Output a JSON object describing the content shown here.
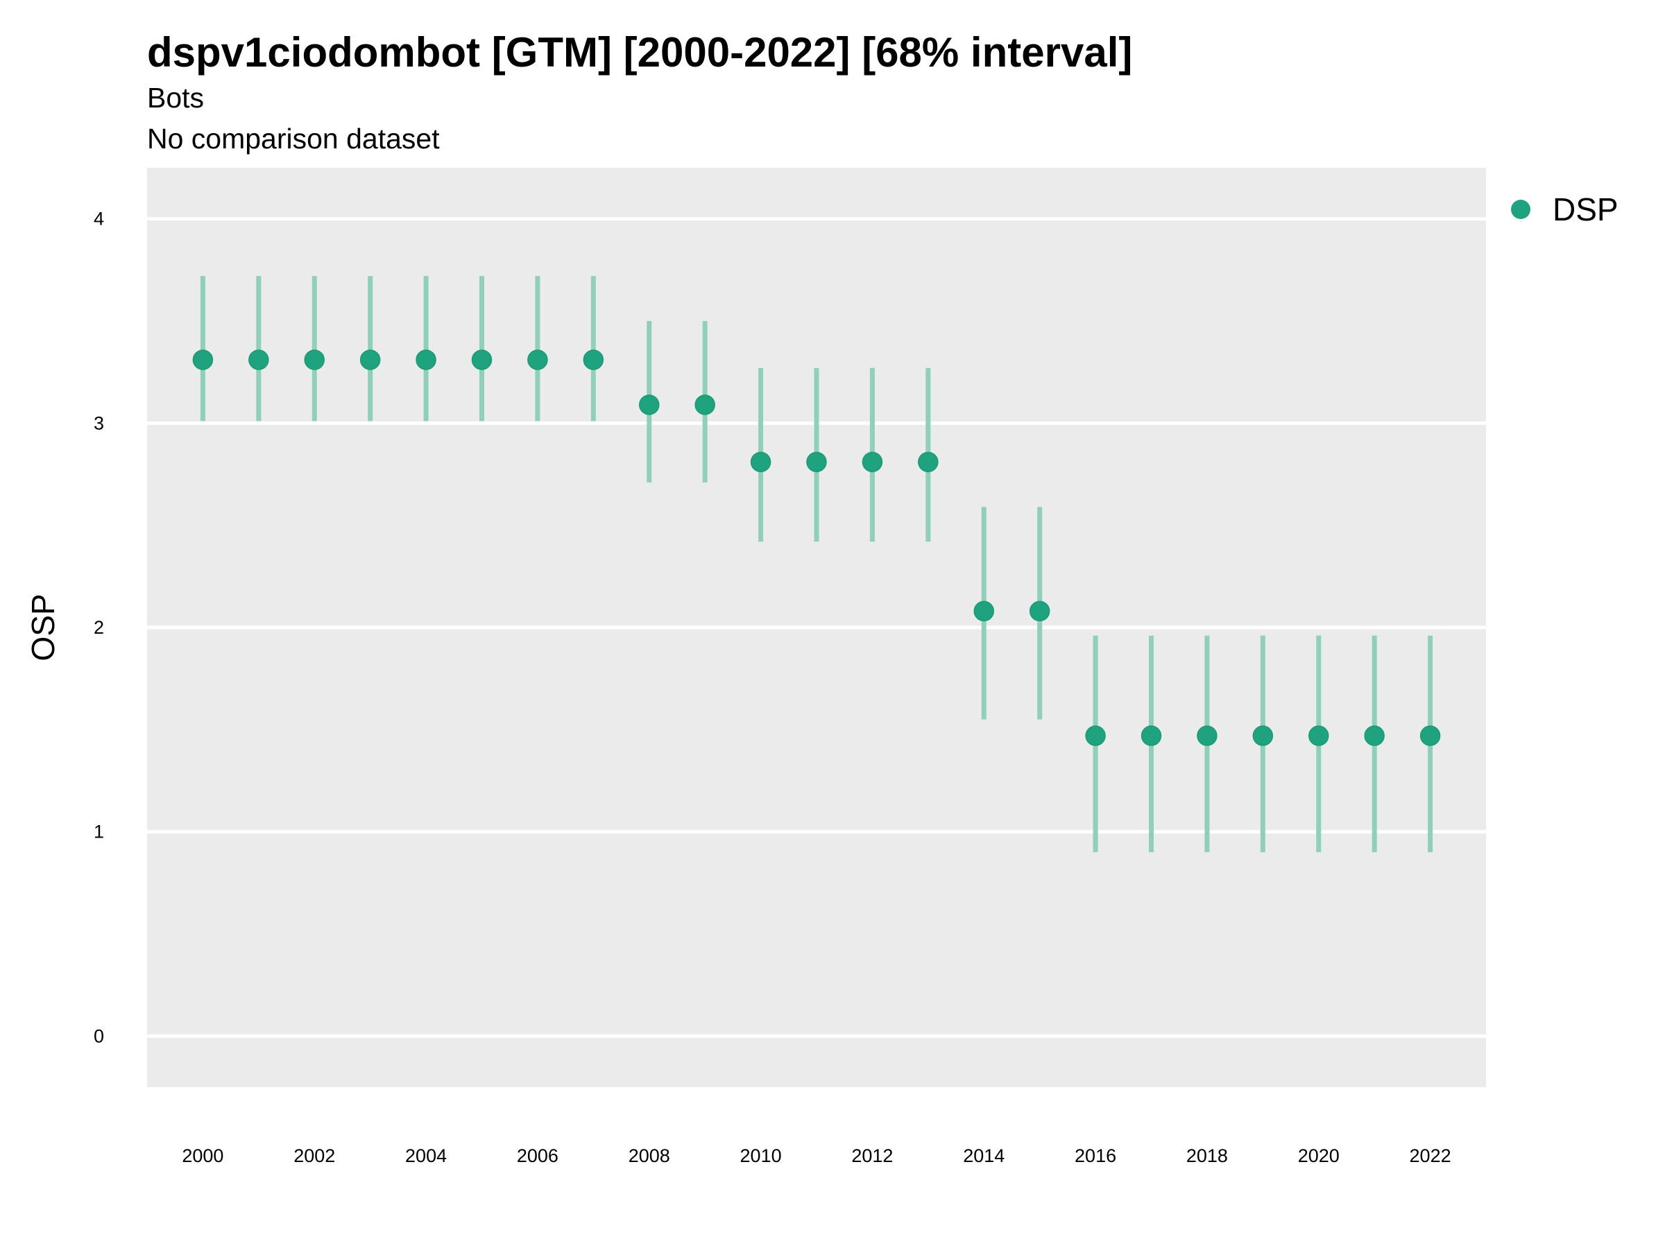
{
  "chart_data": {
    "type": "scatter",
    "title": "dspv1ciodombot [GTM] [2000-2022] [68% interval]",
    "subtitle": "Bots",
    "caption_line": "No comparison dataset",
    "ylabel": "OSP",
    "xlabel": "",
    "ylim": [
      -0.25,
      4.25
    ],
    "xlim": [
      1999,
      2023
    ],
    "y_ticks": [
      "0",
      "1",
      "2",
      "3",
      "4"
    ],
    "x_ticks": [
      "2000",
      "2002",
      "2004",
      "2006",
      "2008",
      "2010",
      "2012",
      "2014",
      "2016",
      "2018",
      "2020",
      "2022"
    ],
    "grid": true,
    "legend_position": "right",
    "series": [
      {
        "name": "DSP",
        "color": "#1FA37F",
        "interval_color": "#8ED0BA",
        "x": [
          2000,
          2001,
          2002,
          2003,
          2004,
          2005,
          2006,
          2007,
          2008,
          2009,
          2010,
          2011,
          2012,
          2013,
          2014,
          2015,
          2016,
          2017,
          2018,
          2019,
          2020,
          2021,
          2022
        ],
        "y": [
          3.31,
          3.31,
          3.31,
          3.31,
          3.31,
          3.31,
          3.31,
          3.31,
          3.09,
          3.09,
          2.81,
          2.81,
          2.81,
          2.81,
          2.08,
          2.08,
          1.47,
          1.47,
          1.47,
          1.47,
          1.47,
          1.47,
          1.47
        ],
        "lower": [
          3.01,
          3.01,
          3.01,
          3.01,
          3.01,
          3.01,
          3.01,
          3.01,
          2.71,
          2.71,
          2.42,
          2.42,
          2.42,
          2.42,
          1.55,
          1.55,
          0.9,
          0.9,
          0.9,
          0.9,
          0.9,
          0.9,
          0.9
        ],
        "upper": [
          3.72,
          3.72,
          3.72,
          3.72,
          3.72,
          3.72,
          3.72,
          3.72,
          3.5,
          3.5,
          3.27,
          3.27,
          3.27,
          3.27,
          2.59,
          2.59,
          1.96,
          1.96,
          1.96,
          1.96,
          1.96,
          1.96,
          1.96
        ]
      }
    ]
  }
}
